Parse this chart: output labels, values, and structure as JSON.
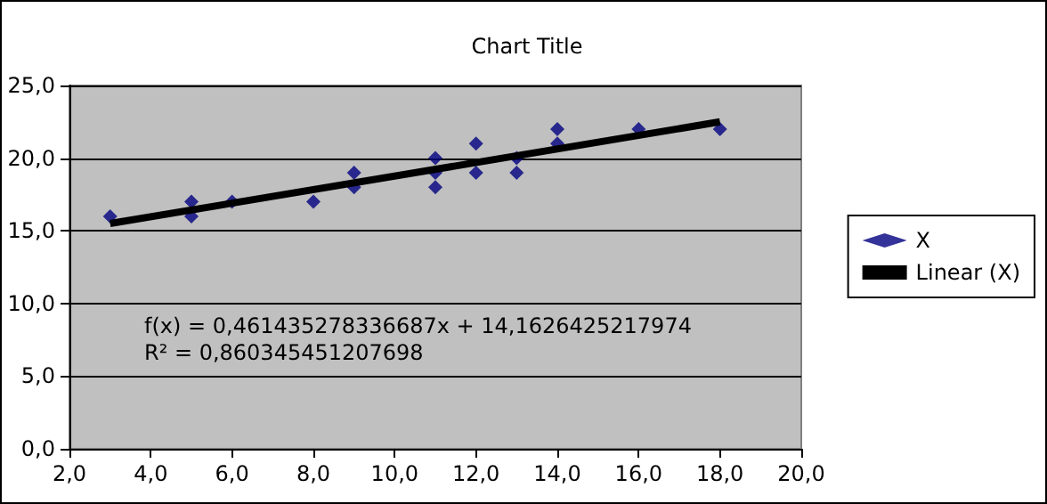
{
  "chart_data": {
    "type": "scatter",
    "title": "Chart Title",
    "xlim": [
      2,
      20
    ],
    "ylim": [
      0,
      25
    ],
    "xticks": [
      {
        "value": 2,
        "label": "2,0"
      },
      {
        "value": 4,
        "label": "4,0"
      },
      {
        "value": 6,
        "label": "6,0"
      },
      {
        "value": 8,
        "label": "8,0"
      },
      {
        "value": 10,
        "label": "10,0"
      },
      {
        "value": 12,
        "label": "12,0"
      },
      {
        "value": 14,
        "label": "14,0"
      },
      {
        "value": 16,
        "label": "16,0"
      },
      {
        "value": 18,
        "label": "18,0"
      },
      {
        "value": 20,
        "label": "20,0"
      }
    ],
    "yticks": [
      {
        "value": 0,
        "label": "0,0"
      },
      {
        "value": 5,
        "label": "5,0"
      },
      {
        "value": 10,
        "label": "10,0"
      },
      {
        "value": 15,
        "label": "15,0"
      },
      {
        "value": 20,
        "label": "20,0"
      },
      {
        "value": 25,
        "label": "25,0"
      }
    ],
    "grid": "y",
    "legend": "right",
    "marker": "diamond",
    "annotations": [
      "f(x) = 0,461435278336687x + 14,1626425217974",
      "R² = 0,860345451207698"
    ],
    "series": [
      {
        "name": "X",
        "color": "#000080",
        "x": [
          3,
          5,
          5,
          6,
          8,
          9,
          9,
          11,
          11,
          11,
          12,
          12,
          13,
          13,
          14,
          14,
          16,
          18
        ],
        "values": [
          16,
          17,
          16,
          17,
          17,
          19,
          18,
          20,
          19,
          18,
          21,
          19,
          20,
          19,
          22,
          21,
          22,
          22
        ]
      },
      {
        "name": "Linear (X)",
        "type": "line",
        "color": "#000000",
        "marker": "none",
        "x": [
          3,
          18
        ],
        "values": [
          15.5,
          22.5
        ]
      }
    ]
  }
}
